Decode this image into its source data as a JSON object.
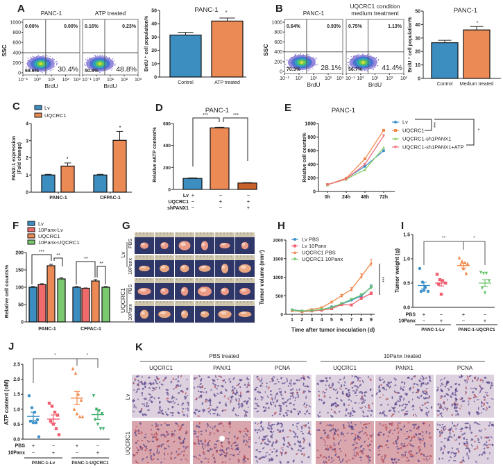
{
  "labels": [
    "A",
    "B",
    "C",
    "D",
    "E",
    "F",
    "G",
    "H",
    "I",
    "J",
    "K"
  ],
  "chart_data": [
    {
      "panel": "A",
      "type": "scatter",
      "subtype": "flow-cytometry",
      "plots": [
        {
          "title_lines": [
            "PANC-1"
          ],
          "quadrants": [
            "0.00%",
            "0.00%",
            "69.6%",
            "30.4%"
          ]
        },
        {
          "title_lines": [
            "ATP treated"
          ],
          "quadrants": [
            "0.16%",
            "0.23%",
            "50.8%",
            "48.8%"
          ]
        }
      ],
      "xlabel": "BrdU",
      "ylabel": "SSC",
      "yticks": [
        0,
        200,
        400,
        600,
        800,
        1000
      ],
      "ylim": [
        0,
        1000
      ],
      "xticks": [
        "10⁻¹",
        "10⁰",
        "10¹",
        "10²",
        "10³"
      ]
    },
    {
      "panel": "A",
      "type": "bar",
      "title": "PANC-1",
      "categories": [
        "Control",
        "ATP treated"
      ],
      "values": [
        31.5,
        42
      ],
      "errors": [
        2,
        2.3
      ],
      "colors": [
        "#3d8ec0",
        "#ec8a56"
      ],
      "ylabel": "BrdU ⁺ cell population%",
      "yticks": [
        0,
        10,
        20,
        30,
        40,
        50
      ],
      "ylim": [
        0,
        50
      ],
      "significance": [
        "*"
      ]
    },
    {
      "panel": "B",
      "type": "scatter",
      "subtype": "flow-cytometry",
      "plots": [
        {
          "title_lines": [
            "PANC-1"
          ],
          "quadrants": [
            "0.64%",
            "0.93%",
            "70.3%",
            "28.1%"
          ]
        },
        {
          "title_lines": [
            "UQCRC1 condition",
            "medium treatment"
          ],
          "quadrants": [
            "0.75%",
            "1.13%",
            "56.7%",
            "41.4%"
          ]
        }
      ],
      "xlabel": "BrdU",
      "ylabel": "SSC",
      "yticks": [
        0,
        200,
        400,
        600,
        800,
        1000
      ],
      "ylim": [
        0,
        1000
      ],
      "xticks": [
        "10⁻¹",
        "10⁰",
        "10¹",
        "10²",
        "10³"
      ]
    },
    {
      "panel": "B",
      "type": "bar",
      "title": "PANC-1",
      "categories": [
        "Control",
        "Medium treated"
      ],
      "values": [
        26.5,
        36
      ],
      "errors": [
        1.8,
        2.5
      ],
      "colors": [
        "#3d8ec0",
        "#ec8a56"
      ],
      "ylabel": "BrdU ⁺ cell population%",
      "yticks": [
        0,
        10,
        20,
        30,
        40,
        50
      ],
      "ylim": [
        0,
        50
      ],
      "significance": [
        "*"
      ]
    },
    {
      "panel": "C",
      "type": "bar",
      "categories": [
        "PANC-1",
        "CFPAC-1"
      ],
      "series": [
        {
          "name": "Lv",
          "values": [
            1.0,
            1.0
          ],
          "errors": [
            0.04,
            0.04
          ],
          "color": "#3d8ec0"
        },
        {
          "name": "UQCRC1",
          "values": [
            1.52,
            3.02
          ],
          "errors": [
            0.18,
            0.52
          ],
          "color": "#ec8a56"
        }
      ],
      "ylabel_lines": [
        "PANX-1 expression",
        "(Fold change)"
      ],
      "yticks": [
        0,
        1,
        2,
        3,
        4
      ],
      "ylim": [
        0,
        4
      ],
      "significance": [
        "*",
        "*"
      ]
    },
    {
      "panel": "D",
      "type": "bar",
      "title": "PANC-1",
      "values": [
        100,
        560,
        58
      ],
      "errors": [
        5,
        6,
        4
      ],
      "colors": [
        "#3d8ec0",
        "#ec8a56",
        "#c8602a"
      ],
      "ylabel": "Relative eATP content%",
      "yticks": [
        0,
        200,
        400,
        600
      ],
      "ylim": [
        0,
        600
      ],
      "conditions": [
        {
          "name": "Lv",
          "signs": [
            "+",
            "−",
            "−"
          ]
        },
        {
          "name": "UQCRC1",
          "signs": [
            "−",
            "+",
            "+"
          ]
        },
        {
          "name": "shPANX1",
          "signs": [
            "−",
            "−",
            "+"
          ]
        }
      ],
      "significance": [
        "***",
        "***"
      ]
    },
    {
      "panel": "E",
      "type": "line",
      "title": "PANC-1",
      "x": [
        "0h",
        "24h",
        "48h",
        "72h"
      ],
      "series": [
        {
          "name": "Lv",
          "values": [
            100,
            190,
            370,
            600
          ],
          "color": "#3a8fc7",
          "marker": "circle"
        },
        {
          "name": "UQCRC1",
          "values": [
            100,
            195,
            480,
            900
          ],
          "color": "#f0884a",
          "marker": "square"
        },
        {
          "name": "UQCRC1-sh1PANX1",
          "values": [
            100,
            180,
            320,
            645
          ],
          "color": "#8ccf6c",
          "marker": "triangle"
        },
        {
          "name": "UQCRC1-sh1PANX1+ATP",
          "values": [
            100,
            185,
            400,
            820
          ],
          "color": "#ef6f7f",
          "marker": "triangle-down"
        }
      ],
      "ylabel": "Relative cell counts%",
      "yticks": [
        0,
        200,
        400,
        600,
        800,
        1000
      ],
      "ylim": [
        0,
        1000
      ],
      "significance": [
        "***",
        "*"
      ]
    },
    {
      "panel": "F",
      "type": "bar",
      "categories": [
        "PANC-1",
        "CFPAC-1"
      ],
      "series": [
        {
          "name": "Lv",
          "values": [
            100,
            100
          ],
          "errors": [
            2,
            2
          ],
          "color": "#3d8ec0"
        },
        {
          "name": "10Panx-Lv",
          "values": [
            108,
            97
          ],
          "errors": [
            2,
            1
          ],
          "color": "#ef6b6b"
        },
        {
          "name": "UQCRC1",
          "values": [
            162,
            118
          ],
          "errors": [
            4,
            4
          ],
          "color": "#ec8a56"
        },
        {
          "name": "10Panx-UQCRC1",
          "values": [
            124,
            100
          ],
          "errors": [
            3,
            2
          ],
          "color": "#7bc96f"
        }
      ],
      "ylabel": "Relative cell counts%",
      "yticks": [
        0,
        50,
        100,
        150,
        200
      ],
      "ylim": [
        0,
        200
      ],
      "significance": [
        "***",
        "**",
        "**",
        "**"
      ]
    },
    {
      "panel": "H",
      "type": "line",
      "x": [
        1,
        2,
        3,
        4,
        5,
        6,
        7,
        8,
        9
      ],
      "series": [
        {
          "name": "Lv PBS",
          "values": [
            120,
            90,
            100,
            120,
            200,
            270,
            380,
            490,
            740
          ],
          "color": "#3a8fc7",
          "marker": "circle"
        },
        {
          "name": "Lv 10Panx",
          "values": [
            100,
            70,
            90,
            110,
            150,
            260,
            250,
            430,
            560
          ],
          "color": "#ef5f6f",
          "marker": "square"
        },
        {
          "name": "UQCRC1 PBS",
          "values": [
            100,
            80,
            130,
            180,
            330,
            500,
            670,
            1020,
            1380
          ],
          "color": "#f0884a",
          "marker": "triangle"
        },
        {
          "name": "UQCRC1 10Panx",
          "values": [
            110,
            85,
            100,
            130,
            180,
            290,
            400,
            520,
            720
          ],
          "color": "#6cc56c",
          "marker": "triangle-down"
        }
      ],
      "xlabel": "Time after tumor inoculation (d)",
      "ylabel": "Tumor volume (mm³)",
      "yticks": [
        0,
        500,
        1000,
        1500,
        2000
      ],
      "ylim": [
        0,
        2000
      ],
      "significance": [
        "***"
      ]
    },
    {
      "panel": "I",
      "type": "scatter",
      "ylabel": "Tumor weight (g)",
      "yticks": [
        "0.0",
        "0.5",
        "1.0",
        "1.5"
      ],
      "ylim": [
        0,
        1.5
      ],
      "groups": [
        {
          "points": [
            0.8,
            0.52,
            0.42,
            0.33,
            0.33,
            0.35
          ],
          "mean": 0.45,
          "sem": 0.07,
          "color": "#3a8fc7",
          "marker": "circle"
        },
        {
          "points": [
            0.68,
            0.57,
            0.55,
            0.5,
            0.48,
            0.27
          ],
          "mean": 0.5,
          "sem": 0.06,
          "color": "#ef5f6f",
          "marker": "square"
        },
        {
          "points": [
            1.02,
            0.95,
            0.92,
            0.9,
            0.88,
            0.8,
            0.7
          ],
          "mean": 0.86,
          "sem": 0.05,
          "color": "#f0884a",
          "marker": "triangle"
        },
        {
          "points": [
            0.72,
            0.7,
            0.7,
            0.55,
            0.4,
            0.3
          ],
          "mean": 0.5,
          "sem": 0.07,
          "color": "#6cc56c",
          "marker": "triangle-down"
        }
      ],
      "conditions": [
        {
          "name": "PBS",
          "signs": [
            "+",
            "−",
            "+",
            "−"
          ]
        },
        {
          "name": "10Panx",
          "signs": [
            "−",
            "+",
            "−",
            "+"
          ]
        }
      ],
      "group_labels": [
        "PANC-1-Lv",
        "PANC-1-UQCRC1"
      ],
      "significance": [
        "**",
        "*"
      ]
    },
    {
      "panel": "J",
      "type": "scatter",
      "ylabel": "ATP content (nM)",
      "yticks": [
        "0.0",
        "0.5",
        "1.0",
        "1.5",
        "2.0",
        "2.5"
      ],
      "ylim": [
        0,
        2.5
      ],
      "groups": [
        {
          "points": [
            1.45,
            1.05,
            0.9,
            0.65,
            0.6,
            0.55,
            0.55,
            0.08
          ],
          "mean": 0.76,
          "sem": 0.14,
          "color": "#3a8fc7",
          "marker": "circle"
        },
        {
          "points": [
            1.2,
            1.1,
            0.9,
            0.8,
            0.6,
            0.5,
            0.35,
            0.15
          ],
          "mean": 0.67,
          "sem": 0.14,
          "color": "#ef5f6f",
          "marker": "square"
        },
        {
          "points": [
            2.35,
            2.2,
            1.5,
            1.3,
            1.0,
            0.85,
            0.75,
            0.75
          ],
          "mean": 1.37,
          "sem": 0.22,
          "color": "#f0884a",
          "marker": "triangle"
        },
        {
          "points": [
            1.45,
            1.0,
            0.95,
            0.85,
            0.65,
            0.5,
            0.35,
            0.35
          ],
          "mean": 0.82,
          "sem": 0.16,
          "color": "#3fae6a",
          "marker": "triangle-down"
        }
      ],
      "conditions": [
        {
          "name": "PBS",
          "signs": [
            "+",
            "−",
            "+",
            "−"
          ]
        },
        {
          "name": "10Panx",
          "signs": [
            "−",
            "+",
            "−",
            "+"
          ]
        }
      ],
      "group_labels": [
        "PANC-1-Lv",
        "PANC-1-UQCRC1"
      ],
      "significance": [
        "*",
        "*"
      ]
    }
  ],
  "tumor_photos": {
    "panel": "G",
    "groups": [
      {
        "name": "Lv",
        "treatments": [
          "PBS",
          "10Panx"
        ]
      },
      {
        "name": "UQCRC1",
        "treatments": [
          "PBS",
          "10Panx"
        ]
      }
    ]
  },
  "histology": {
    "panel": "K",
    "headers": [
      "PBS treated",
      "10Panx treated"
    ],
    "columns": [
      "UQCRC1",
      "PANX1",
      "PCNA",
      "UQCRC1",
      "PANX1",
      "PCNA"
    ],
    "rows": [
      "Lv",
      "UQCRC1"
    ]
  }
}
